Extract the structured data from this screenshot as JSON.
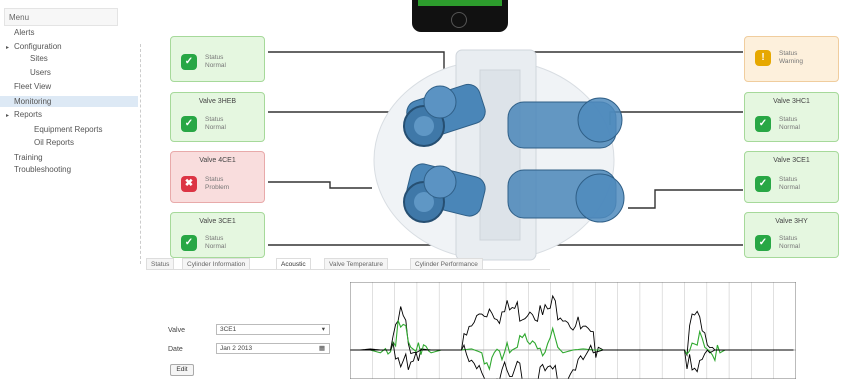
{
  "sidebar": {
    "title": "Menu",
    "items": [
      {
        "label": "Alerts",
        "level": 1,
        "caret": ""
      },
      {
        "label": "Configuration",
        "level": 0,
        "caret": "▸"
      },
      {
        "label": "Sites",
        "level": 2,
        "caret": ""
      },
      {
        "label": "Users",
        "level": 2,
        "caret": ""
      },
      {
        "label": "Fleet View",
        "level": 1,
        "caret": ""
      },
      {
        "label": "Monitoring",
        "level": 1,
        "caret": "",
        "active": true
      },
      {
        "label": "Reports",
        "level": 0,
        "caret": "▸"
      },
      {
        "label": "Equipment Reports",
        "level": 3,
        "caret": ""
      },
      {
        "label": "Oil Reports",
        "level": 3,
        "caret": ""
      },
      {
        "label": "Training",
        "level": 1,
        "caret": ""
      },
      {
        "label": "Troubleshooting",
        "level": 1,
        "caret": ""
      }
    ]
  },
  "phone": {
    "status": "●●●"
  },
  "valves": [
    {
      "id": "v-left-1",
      "title": "",
      "status": "ok",
      "icon": "check-icon",
      "lines": [
        "Status",
        "Normal"
      ]
    },
    {
      "id": "v-left-2",
      "title": "Valve 3HEB",
      "status": "ok",
      "icon": "check-icon",
      "lines": [
        "Status",
        "Normal"
      ]
    },
    {
      "id": "v-left-3",
      "title": "Valve 4CE1",
      "status": "alarm",
      "icon": "alarm-icon",
      "lines": [
        "Status",
        "Problem"
      ]
    },
    {
      "id": "v-left-4",
      "title": "Valve 3CE1",
      "status": "ok",
      "icon": "check-icon",
      "lines": [
        "Status",
        "Normal"
      ]
    },
    {
      "id": "v-right-1",
      "title": "",
      "status": "warn",
      "icon": "warning-icon",
      "lines": [
        "Status",
        "Warning"
      ]
    },
    {
      "id": "v-right-2",
      "title": "Valve 3HC1",
      "status": "ok",
      "icon": "check-icon",
      "lines": [
        "Status",
        "Normal"
      ]
    },
    {
      "id": "v-right-3",
      "title": "Valve 3CE1",
      "status": "ok",
      "icon": "check-icon",
      "lines": [
        "Status",
        "Normal"
      ]
    },
    {
      "id": "v-right-4",
      "title": "Valve 3HY",
      "status": "ok",
      "icon": "check-icon",
      "lines": [
        "Status",
        "Normal"
      ]
    }
  ],
  "tabs": [
    {
      "label": "Status",
      "active": false
    },
    {
      "label": "Cylinder Information",
      "active": false
    },
    {
      "label": "Acoustic",
      "active": true
    },
    {
      "label": "Valve Temperature",
      "active": false
    },
    {
      "label": "Cylinder Performance",
      "active": false
    }
  ],
  "form": {
    "valve_label": "Valve",
    "valve_value": "3CE1",
    "date_label": "Date",
    "date_value": "Jan 2 2013",
    "button_label": "Edit"
  },
  "colors": {
    "accent_green": "#28a745",
    "alarm_red": "#dc3545",
    "warning_amber": "#e6a800",
    "valve_blue": "#4a86b8",
    "trace_black": "#000000",
    "trace_green": "#2fa82f"
  },
  "chart_data": {
    "type": "line",
    "title": "",
    "xlabel": "",
    "ylabel": "",
    "grid": true,
    "x": [
      0,
      10,
      20,
      30,
      40,
      50,
      60,
      70,
      80,
      90,
      100,
      110,
      120,
      130,
      140,
      150,
      160,
      170,
      180,
      190,
      200,
      210,
      220,
      230,
      240,
      250,
      260,
      270,
      280,
      290,
      300,
      310,
      320,
      330,
      340,
      350,
      360,
      370,
      380,
      390,
      400,
      410,
      420,
      430,
      440
    ],
    "ylim": [
      -1,
      1
    ],
    "series": [
      {
        "values": [
          0,
          0,
          0.02,
          0,
          0,
          0.6,
          0.15,
          0.02,
          0,
          0,
          0,
          0,
          0.4,
          0.7,
          0.8,
          0.65,
          0.75,
          0.7,
          0.85,
          0.6,
          0.8,
          0.75,
          0.5,
          0.3,
          0.1,
          0,
          0,
          0,
          0,
          0,
          0,
          0,
          0,
          0,
          0.6,
          0.2,
          0,
          0,
          0,
          0,
          0,
          0,
          0,
          0,
          0
        ]
      },
      {
        "values": [
          0,
          0,
          0,
          -0.05,
          0.1,
          0.35,
          0.05,
          -0.1,
          -0.05,
          0,
          0,
          0,
          0.02,
          -0.05,
          -0.15,
          -0.2,
          0,
          0.1,
          0.2,
          0.1,
          0.15,
          -0.05,
          0,
          0.02,
          0,
          0,
          0,
          0,
          0,
          0,
          0,
          0,
          0,
          0,
          0.3,
          0.05,
          -0.1,
          0,
          0,
          0,
          0,
          0,
          0,
          0,
          0
        ]
      },
      {
        "values": [
          0,
          0,
          0,
          0,
          0,
          -0.4,
          -0.1,
          0,
          0,
          0,
          0,
          0,
          -0.3,
          -0.5,
          -0.5,
          -0.45,
          -0.5,
          -0.4,
          -0.55,
          -0.4,
          -0.5,
          -0.5,
          -0.3,
          -0.2,
          -0.05,
          0,
          0,
          0,
          0,
          0,
          0,
          0,
          0,
          0,
          -0.5,
          -0.1,
          0,
          0,
          0,
          0,
          0,
          0,
          0,
          0,
          0
        ]
      }
    ]
  }
}
